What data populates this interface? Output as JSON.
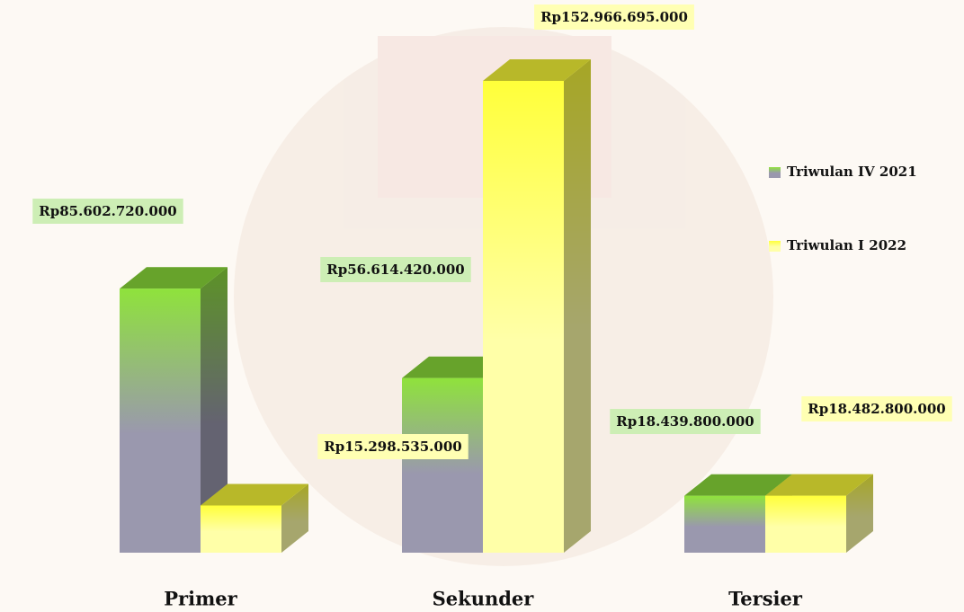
{
  "chart_data": {
    "type": "bar3d",
    "categories": [
      "Primer",
      "Sekunder",
      "Tersier"
    ],
    "series": [
      {
        "name": "Triwulan IV 2021",
        "color": "#8fe23c",
        "values": [
          85602720000,
          56614420000,
          18439800000
        ],
        "value_labels": [
          "Rp85.602.720.000",
          "Rp56.614.420.000",
          "Rp18.439.800.000"
        ]
      },
      {
        "name": "Triwulan I 2022",
        "color": "#ffff3a",
        "values": [
          15298535000,
          152966695000,
          18482800000
        ],
        "value_labels": [
          "Rp15.298.535.000",
          "Rp152.966.695.000",
          "Rp18.482.800.000"
        ]
      }
    ]
  }
}
